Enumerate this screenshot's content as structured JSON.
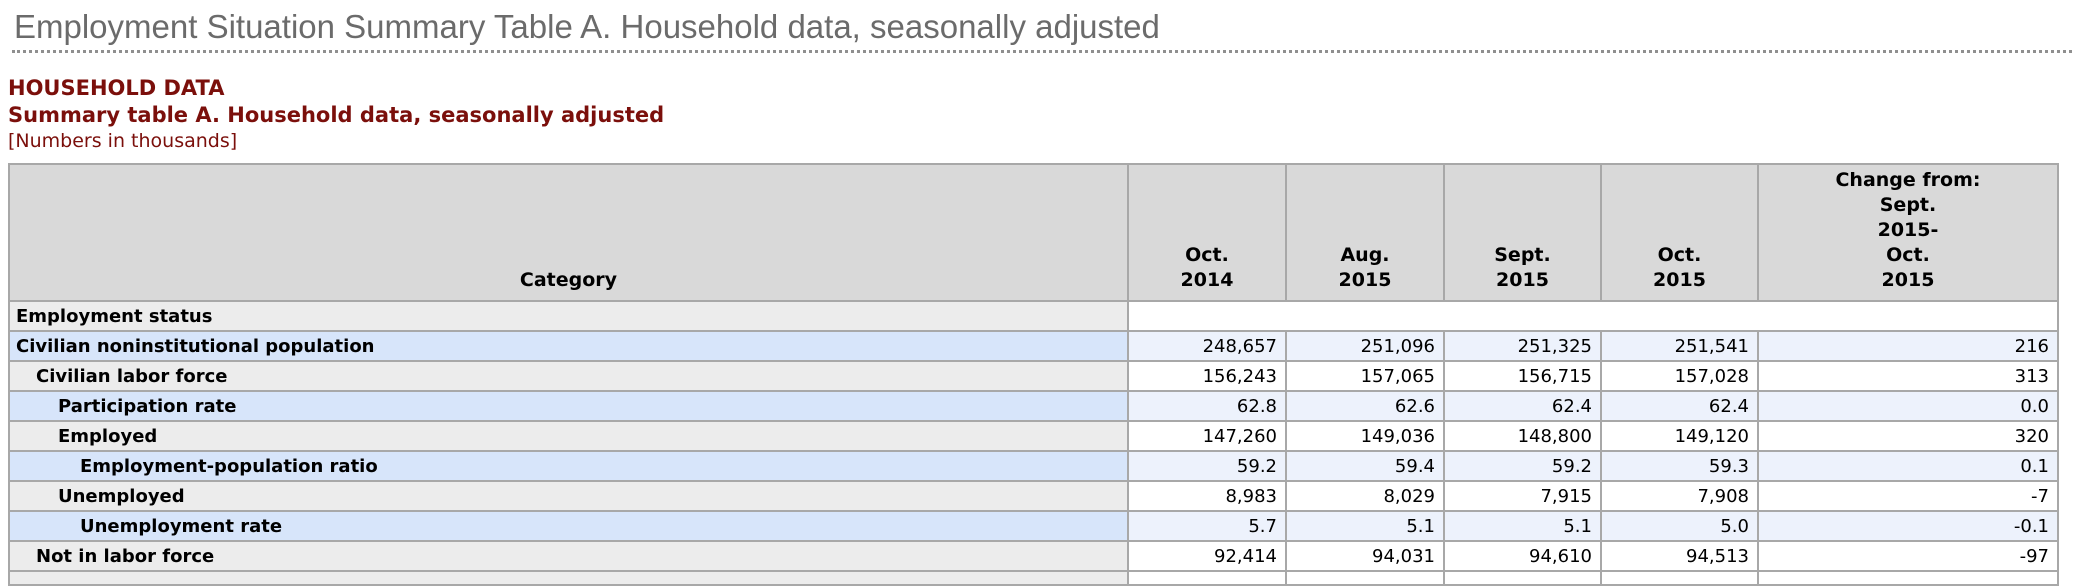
{
  "page": {
    "title": "Employment Situation Summary Table A. Household data, seasonally adjusted"
  },
  "section": {
    "heading": "HOUSEHOLD DATA",
    "subheading": "Summary table A. Household data, seasonally adjusted",
    "note": "[Numbers in thousands]"
  },
  "table": {
    "category_header": "Category",
    "columns": [
      {
        "id": "oct-2014",
        "lines": [
          "Oct.",
          "2014"
        ]
      },
      {
        "id": "aug-2015",
        "lines": [
          "Aug.",
          "2015"
        ]
      },
      {
        "id": "sept-2015",
        "lines": [
          "Sept.",
          "2015"
        ]
      },
      {
        "id": "oct-2015",
        "lines": [
          "Oct.",
          "2015"
        ]
      },
      {
        "id": "change-from-sept-2015-oct-2015",
        "lines": [
          "Change from:",
          "Sept.",
          "2015-",
          "Oct.",
          "2015"
        ]
      }
    ],
    "rows": [
      {
        "label": "Employment status",
        "indent": 0,
        "highlight": false,
        "section_header": true,
        "values": []
      },
      {
        "label": "Civilian noninstitutional population",
        "indent": 0,
        "highlight": true,
        "values": [
          "248,657",
          "251,096",
          "251,325",
          "251,541",
          "216"
        ]
      },
      {
        "label": "Civilian labor force",
        "indent": 1,
        "highlight": false,
        "values": [
          "156,243",
          "157,065",
          "156,715",
          "157,028",
          "313"
        ]
      },
      {
        "label": "Participation rate",
        "indent": 2,
        "highlight": true,
        "values": [
          "62.8",
          "62.6",
          "62.4",
          "62.4",
          "0.0"
        ]
      },
      {
        "label": "Employed",
        "indent": 2,
        "highlight": false,
        "values": [
          "147,260",
          "149,036",
          "148,800",
          "149,120",
          "320"
        ]
      },
      {
        "label": "Employment-population ratio",
        "indent": 3,
        "highlight": true,
        "values": [
          "59.2",
          "59.4",
          "59.2",
          "59.3",
          "0.1"
        ]
      },
      {
        "label": "Unemployed",
        "indent": 2,
        "highlight": false,
        "values": [
          "8,983",
          "8,029",
          "7,915",
          "7,908",
          "-7"
        ]
      },
      {
        "label": "Unemployment rate",
        "indent": 3,
        "highlight": true,
        "values": [
          "5.7",
          "5.1",
          "5.1",
          "5.0",
          "-0.1"
        ]
      },
      {
        "label": "Not in labor force",
        "indent": 1,
        "highlight": false,
        "values": [
          "92,414",
          "94,031",
          "94,610",
          "94,513",
          "-97"
        ]
      },
      {
        "label": "",
        "indent": 0,
        "highlight": false,
        "partial": true,
        "values": [
          "",
          "",
          "",
          "",
          ""
        ]
      }
    ]
  },
  "colors": {
    "heading_maroon": "#7b0f0b",
    "title_gray": "#6b6b6b",
    "header_bg": "#d9d9d9",
    "row_label_bg": "#ececec",
    "row_label_highlight_bg": "#d7e5fa",
    "row_value_highlight_bg": "#edf2fc",
    "border": "#a8a8a8"
  }
}
